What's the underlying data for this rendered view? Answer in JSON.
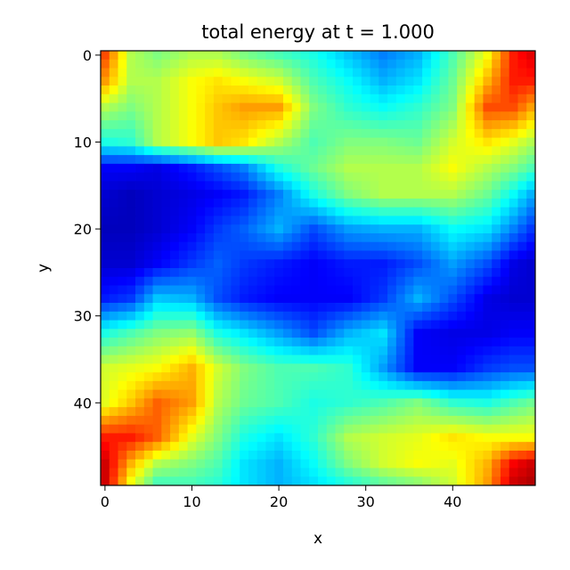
{
  "chart_data": {
    "type": "heatmap",
    "title": "total energy at t = 1.000",
    "xlabel": "x",
    "ylabel": "y",
    "grid": false,
    "colormap": "jet",
    "xlim": [
      -0.5,
      49.5
    ],
    "ylim": [
      49.5,
      -0.5
    ],
    "x_ticks": [
      0,
      10,
      20,
      30,
      40
    ],
    "y_ticks": [
      0,
      10,
      20,
      30,
      40
    ],
    "grid_size": [
      50,
      50
    ],
    "value_range": [
      0,
      1
    ],
    "value_control_points": {
      "rows": [
        0,
        3,
        6,
        10,
        13,
        16,
        20,
        24,
        28,
        32,
        36,
        40,
        44,
        47,
        49
      ],
      "cols": [
        0,
        3,
        6,
        10,
        13,
        16,
        20,
        24,
        28,
        32,
        36,
        40,
        44,
        47,
        49
      ],
      "values": [
        [
          0.8,
          0.55,
          0.5,
          0.55,
          0.55,
          0.5,
          0.45,
          0.4,
          0.32,
          0.25,
          0.3,
          0.45,
          0.62,
          0.85,
          0.9
        ],
        [
          0.72,
          0.55,
          0.55,
          0.62,
          0.65,
          0.62,
          0.58,
          0.45,
          0.38,
          0.3,
          0.35,
          0.48,
          0.7,
          0.85,
          0.85
        ],
        [
          0.55,
          0.5,
          0.55,
          0.62,
          0.68,
          0.72,
          0.72,
          0.5,
          0.42,
          0.38,
          0.42,
          0.5,
          0.8,
          0.8,
          0.72
        ],
        [
          0.4,
          0.42,
          0.55,
          0.62,
          0.68,
          0.65,
          0.55,
          0.45,
          0.5,
          0.5,
          0.48,
          0.58,
          0.65,
          0.6,
          0.55
        ],
        [
          0.12,
          0.12,
          0.1,
          0.15,
          0.2,
          0.25,
          0.4,
          0.48,
          0.55,
          0.55,
          0.55,
          0.62,
          0.55,
          0.5,
          0.45
        ],
        [
          0.08,
          0.06,
          0.08,
          0.1,
          0.12,
          0.15,
          0.25,
          0.4,
          0.5,
          0.55,
          0.55,
          0.55,
          0.48,
          0.38,
          0.3
        ],
        [
          0.06,
          0.06,
          0.08,
          0.12,
          0.18,
          0.22,
          0.3,
          0.2,
          0.28,
          0.3,
          0.3,
          0.38,
          0.35,
          0.25,
          0.18
        ],
        [
          0.08,
          0.08,
          0.12,
          0.18,
          0.22,
          0.18,
          0.15,
          0.12,
          0.15,
          0.15,
          0.2,
          0.28,
          0.2,
          0.1,
          0.08
        ],
        [
          0.15,
          0.18,
          0.32,
          0.3,
          0.2,
          0.15,
          0.12,
          0.12,
          0.12,
          0.18,
          0.3,
          0.2,
          0.1,
          0.08,
          0.08
        ],
        [
          0.4,
          0.45,
          0.5,
          0.52,
          0.4,
          0.35,
          0.28,
          0.2,
          0.3,
          0.35,
          0.12,
          0.1,
          0.1,
          0.12,
          0.12
        ],
        [
          0.58,
          0.6,
          0.62,
          0.7,
          0.58,
          0.5,
          0.45,
          0.45,
          0.42,
          0.28,
          0.12,
          0.12,
          0.18,
          0.2,
          0.2
        ],
        [
          0.6,
          0.68,
          0.78,
          0.72,
          0.55,
          0.48,
          0.45,
          0.4,
          0.42,
          0.45,
          0.5,
          0.42,
          0.4,
          0.45,
          0.48
        ],
        [
          0.85,
          0.85,
          0.78,
          0.6,
          0.5,
          0.4,
          0.35,
          0.42,
          0.55,
          0.58,
          0.6,
          0.65,
          0.62,
          0.62,
          0.62
        ],
        [
          0.92,
          0.7,
          0.55,
          0.5,
          0.45,
          0.35,
          0.3,
          0.38,
          0.5,
          0.58,
          0.62,
          0.6,
          0.7,
          0.88,
          0.92
        ],
        [
          0.92,
          0.62,
          0.45,
          0.45,
          0.42,
          0.35,
          0.3,
          0.35,
          0.42,
          0.48,
          0.52,
          0.58,
          0.72,
          0.92,
          0.95
        ]
      ]
    }
  }
}
